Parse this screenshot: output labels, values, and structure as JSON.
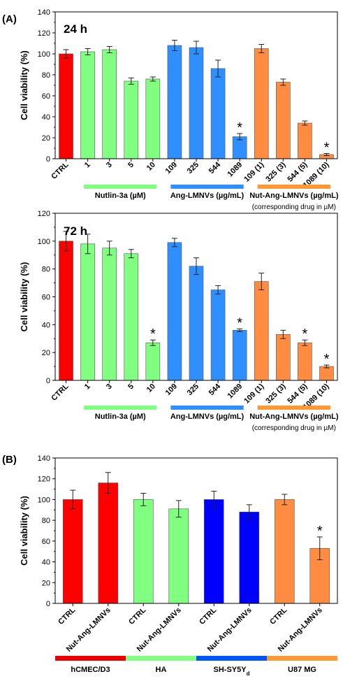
{
  "chart_data": [
    {
      "type": "bar",
      "panel": "(A)",
      "title": "24 h",
      "ylabel": "Cell viability (%)",
      "ylim": [
        0,
        140
      ],
      "yticks": [
        0,
        20,
        40,
        60,
        80,
        100,
        120,
        140
      ],
      "categories": [
        "CTRL",
        "1",
        "3",
        "5",
        "10",
        "109",
        "325",
        "544",
        "1089",
        "109 (1)",
        "325 (3)",
        "544 (5)",
        "1089 (10)"
      ],
      "values": [
        100,
        102,
        104,
        74,
        76,
        108,
        106,
        86,
        21,
        105,
        73,
        34,
        4
      ],
      "errors": [
        4,
        3,
        3,
        3,
        2,
        5,
        6,
        8,
        3,
        4,
        3,
        2,
        1
      ],
      "colors": [
        "#ff0000",
        "#80ff80",
        "#80ff80",
        "#80ff80",
        "#80ff80",
        "#2f8fff",
        "#2f8fff",
        "#2f8fff",
        "#2f8fff",
        "#ff8c40",
        "#ff8c40",
        "#ff8c40",
        "#ff8c40"
      ],
      "significance_marker": "*",
      "significant": [
        8,
        12
      ],
      "groups": [
        {
          "label": "Nutlin-3a (µM)",
          "color": "#80ff80",
          "from": 1,
          "to": 4
        },
        {
          "label": "Ang-LMNVs (µg/mL)",
          "color": "#2f8fff",
          "from": 5,
          "to": 8
        },
        {
          "label": "Nut-Ang-LMNVs (µg/mL)",
          "sublabel": "(corresponding drug in µM)",
          "color": "#ff9933",
          "from": 9,
          "to": 12
        }
      ]
    },
    {
      "type": "bar",
      "panel": "",
      "title": "72 h",
      "ylabel": "Cell viability (%)",
      "ylim": [
        0,
        120
      ],
      "yticks": [
        0,
        20,
        40,
        60,
        80,
        100,
        120
      ],
      "categories": [
        "CTRL",
        "1",
        "3",
        "5",
        "10",
        "109",
        "325",
        "544",
        "1089",
        "109 (1)",
        "325 (3)",
        "544 (5)",
        "1089 (10)"
      ],
      "values": [
        100,
        98,
        95,
        91,
        27,
        99,
        82,
        65,
        36,
        71,
        33,
        27,
        10
      ],
      "errors": [
        7,
        7,
        5,
        3,
        2,
        3,
        6,
        3,
        1,
        6,
        3,
        2,
        1
      ],
      "colors": [
        "#ff0000",
        "#80ff80",
        "#80ff80",
        "#80ff80",
        "#80ff80",
        "#2f8fff",
        "#2f8fff",
        "#2f8fff",
        "#2f8fff",
        "#ff8c40",
        "#ff8c40",
        "#ff8c40",
        "#ff8c40"
      ],
      "significance_marker": "*",
      "significant": [
        4,
        8,
        11,
        12
      ],
      "groups": [
        {
          "label": "Nutlin-3a (µM)",
          "color": "#80ff80",
          "from": 1,
          "to": 4
        },
        {
          "label": "Ang-LMNVs (µg/mL)",
          "color": "#2f8fff",
          "from": 5,
          "to": 8
        },
        {
          "label": "Nut-Ang-LMNVs (µg/mL)",
          "sublabel": "(corresponding drug in µM)",
          "color": "#ff9933",
          "from": 9,
          "to": 12
        }
      ]
    },
    {
      "type": "bar",
      "panel": "(B)",
      "title": "",
      "ylabel": "Cell viability (%)",
      "ylim": [
        0,
        140
      ],
      "yticks": [
        0,
        20,
        40,
        60,
        80,
        100,
        120,
        140
      ],
      "categories": [
        "CTRL",
        "Nut-Ang-LMNVs",
        "CTRL",
        "Nut-Ang-LMNVs",
        "CTRL",
        "Nut-Ang-LMNVs",
        "CTRL",
        "Nut-Ang-LMNVs"
      ],
      "values": [
        100,
        116,
        100,
        91,
        100,
        88,
        100,
        53
      ],
      "errors": [
        9,
        10,
        6,
        8,
        8,
        7,
        5,
        11
      ],
      "colors": [
        "#ff0000",
        "#ff0000",
        "#80ff80",
        "#80ff80",
        "#0000ff",
        "#0000ff",
        "#ff8c40",
        "#ff8c40"
      ],
      "significance_marker": "*",
      "significant": [
        7
      ],
      "groups": [
        {
          "label": "hCMEC/D3",
          "color": "#ee0000",
          "from": 0,
          "to": 1
        },
        {
          "label": "HA",
          "color": "#80ff80",
          "from": 2,
          "to": 3
        },
        {
          "label": "SH-SY5Y",
          "label_sub": "d",
          "color": "#0055ff",
          "from": 4,
          "to": 5
        },
        {
          "label": "U87 MG",
          "color": "#ff9933",
          "from": 6,
          "to": 7
        }
      ]
    }
  ]
}
